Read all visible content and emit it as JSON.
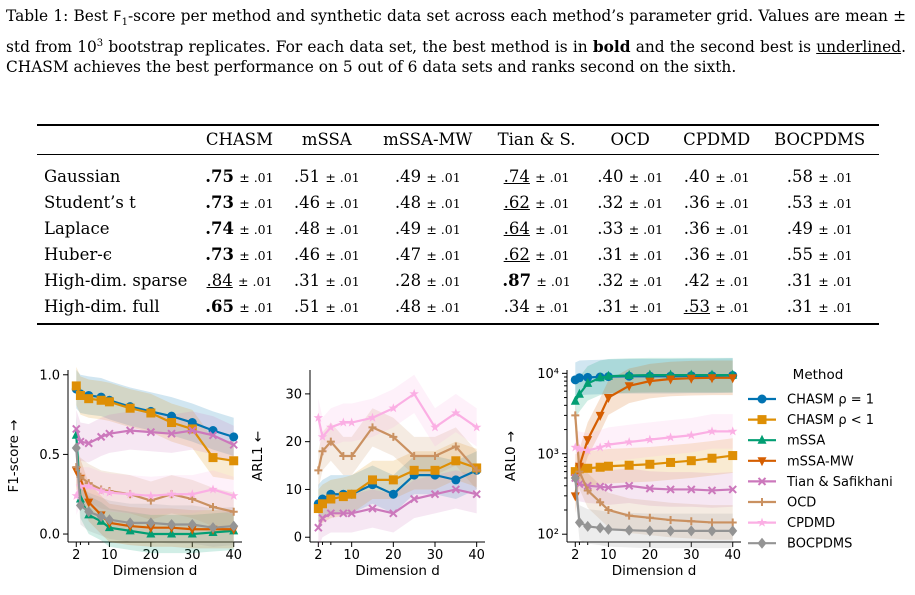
{
  "caption": {
    "prefix": "Table 1: Best ",
    "f1": "F",
    "f1_sub": "1",
    "part1": "-score per method and synthetic data set across each method’s parameter grid. Values are mean ± std from 10",
    "sup3": "3",
    "part2": " bootstrap replicates. For each data set, the best method is in ",
    "bold_word": "bold",
    "part3": " and the second best is ",
    "underlined_word": "underlined",
    "part4": ". CHASM achieves the best performance on 5 out of 6 data sets and ranks second on the sixth."
  },
  "table": {
    "columns": [
      "CHASM",
      "mSSA",
      "mSSA-MW",
      "Tian & S.",
      "OCD",
      "CPDMD",
      "BOCPDMS"
    ],
    "std": "± .01",
    "rows": [
      {
        "label": "Gaussian",
        "cells": [
          {
            "v": ".75",
            "s": "b"
          },
          {
            "v": ".51",
            "s": ""
          },
          {
            "v": ".49",
            "s": ""
          },
          {
            "v": ".74",
            "s": "u"
          },
          {
            "v": ".40",
            "s": ""
          },
          {
            "v": ".40",
            "s": ""
          },
          {
            "v": ".58",
            "s": ""
          }
        ]
      },
      {
        "label": "Student’s t",
        "cells": [
          {
            "v": ".73",
            "s": "b"
          },
          {
            "v": ".46",
            "s": ""
          },
          {
            "v": ".48",
            "s": ""
          },
          {
            "v": ".62",
            "s": "u"
          },
          {
            "v": ".32",
            "s": ""
          },
          {
            "v": ".36",
            "s": ""
          },
          {
            "v": ".53",
            "s": ""
          }
        ]
      },
      {
        "label": "Laplace",
        "cells": [
          {
            "v": ".74",
            "s": "b"
          },
          {
            "v": ".48",
            "s": ""
          },
          {
            "v": ".49",
            "s": ""
          },
          {
            "v": ".64",
            "s": "u"
          },
          {
            "v": ".33",
            "s": ""
          },
          {
            "v": ".36",
            "s": ""
          },
          {
            "v": ".49",
            "s": ""
          }
        ]
      },
      {
        "label": "Huber-ϵ",
        "cells": [
          {
            "v": ".73",
            "s": "b"
          },
          {
            "v": ".46",
            "s": ""
          },
          {
            "v": ".47",
            "s": ""
          },
          {
            "v": ".62",
            "s": "u"
          },
          {
            "v": ".31",
            "s": ""
          },
          {
            "v": ".36",
            "s": ""
          },
          {
            "v": ".55",
            "s": ""
          }
        ]
      },
      {
        "label": "High-dim. sparse",
        "cells": [
          {
            "v": ".84",
            "s": "u"
          },
          {
            "v": ".31",
            "s": ""
          },
          {
            "v": ".28",
            "s": ""
          },
          {
            "v": ".87",
            "s": "b"
          },
          {
            "v": ".32",
            "s": ""
          },
          {
            "v": ".42",
            "s": ""
          },
          {
            "v": ".31",
            "s": ""
          }
        ]
      },
      {
        "label": "High-dim. full",
        "cells": [
          {
            "v": ".65",
            "s": "b"
          },
          {
            "v": ".51",
            "s": ""
          },
          {
            "v": ".48",
            "s": ""
          },
          {
            "v": ".34",
            "s": ""
          },
          {
            "v": ".31",
            "s": ""
          },
          {
            "v": ".53",
            "s": "u"
          },
          {
            "v": ".31",
            "s": ""
          }
        ]
      }
    ]
  },
  "chart_data": [
    {
      "type": "line",
      "xlabel": "Dimension d",
      "ylabel": "F1-score →",
      "xticks": [
        2,
        10,
        20,
        30,
        40
      ],
      "minor_xticks": [
        3,
        5
      ],
      "yticks": [
        "0.0",
        "0.5",
        "1.0"
      ],
      "ylim": [
        -0.05,
        1.03
      ],
      "xlim": [
        0,
        42
      ],
      "x": [
        2,
        3,
        5,
        8,
        10,
        15,
        20,
        25,
        30,
        35,
        40
      ],
      "series": [
        {
          "name": "CHASM ρ = 1",
          "values": [
            0.91,
            0.88,
            0.87,
            0.86,
            0.84,
            0.8,
            0.77,
            0.74,
            0.7,
            0.65,
            0.61
          ]
        },
        {
          "name": "CHASM ρ < 1",
          "values": [
            0.93,
            0.87,
            0.85,
            0.84,
            0.83,
            0.79,
            0.76,
            0.7,
            0.66,
            0.48,
            0.46
          ]
        },
        {
          "name": "mSSA",
          "values": [
            0.62,
            0.22,
            0.12,
            0.08,
            0.04,
            0.02,
            0.0,
            0.0,
            0.0,
            0.01,
            0.02
          ]
        },
        {
          "name": "mSSA-MW",
          "values": [
            0.4,
            0.35,
            0.2,
            0.12,
            0.07,
            0.05,
            0.04,
            0.04,
            0.03,
            0.03,
            0.03
          ]
        },
        {
          "name": "Tian & Safikhani",
          "values": [
            0.66,
            0.58,
            0.57,
            0.61,
            0.63,
            0.65,
            0.64,
            0.63,
            0.65,
            0.62,
            0.56
          ]
        },
        {
          "name": "OCD",
          "values": [
            0.42,
            0.36,
            0.32,
            0.28,
            0.27,
            0.25,
            0.21,
            0.25,
            0.22,
            0.17,
            0.14
          ]
        },
        {
          "name": "CPDMD",
          "values": [
            0.24,
            0.3,
            0.3,
            0.27,
            0.26,
            0.25,
            0.24,
            0.25,
            0.25,
            0.28,
            0.24
          ]
        },
        {
          "name": "BOCPDMS",
          "values": [
            0.54,
            0.18,
            0.14,
            0.11,
            0.09,
            0.07,
            0.07,
            0.06,
            0.06,
            0.04,
            0.05
          ]
        }
      ]
    },
    {
      "type": "line",
      "xlabel": "Dimension d",
      "ylabel": "ARL1 ←",
      "xticks": [
        2,
        10,
        20,
        30,
        40
      ],
      "minor_xticks": [
        3,
        5
      ],
      "yticks": [
        "0",
        "10",
        "20",
        "30"
      ],
      "ylim": [
        -1,
        35
      ],
      "xlim": [
        0,
        42
      ],
      "x": [
        2,
        3,
        5,
        8,
        10,
        15,
        20,
        25,
        30,
        35,
        40
      ],
      "series": [
        {
          "name": "CHASM ρ = 1",
          "values": [
            7,
            8,
            9,
            9,
            9,
            11,
            9,
            13,
            13,
            12,
            14
          ]
        },
        {
          "name": "CHASM ρ < 1",
          "values": [
            6,
            7,
            8,
            8.5,
            9,
            12,
            12,
            14,
            14,
            16,
            14.5
          ]
        },
        {
          "name": "Tian & Safikhani",
          "values": [
            2,
            4,
            5,
            5,
            5,
            6,
            5,
            8,
            9,
            10,
            9
          ]
        },
        {
          "name": "OCD",
          "values": [
            14,
            18,
            20,
            17,
            17,
            23,
            21,
            17,
            17,
            19,
            14
          ]
        },
        {
          "name": "CPDMD",
          "values": [
            25,
            21,
            23,
            24,
            24,
            25,
            27,
            30,
            23,
            26,
            23
          ]
        }
      ]
    },
    {
      "type": "line",
      "log_scale_y": true,
      "xlabel": "Dimension d",
      "ylabel": "ARL0 →",
      "xticks": [
        2,
        10,
        20,
        30,
        40
      ],
      "minor_xticks": [
        3,
        5
      ],
      "yticks": [
        "10²",
        "10³",
        "10⁴"
      ],
      "xlim": [
        0,
        42
      ],
      "x": [
        2,
        3,
        5,
        8,
        10,
        15,
        20,
        25,
        30,
        35,
        40
      ],
      "series": [
        {
          "name": "CHASM ρ = 1",
          "values": [
            8300,
            8800,
            8900,
            9000,
            9100,
            9200,
            9200,
            9200,
            9300,
            9300,
            9400
          ]
        },
        {
          "name": "CHASM ρ < 1",
          "values": [
            600,
            650,
            660,
            680,
            700,
            720,
            740,
            780,
            820,
            880,
            950
          ]
        },
        {
          "name": "mSSA",
          "values": [
            4500,
            5500,
            7500,
            8800,
            9200,
            9400,
            9500,
            9500,
            9500,
            9500,
            9500
          ]
        },
        {
          "name": "mSSA-MW",
          "values": [
            300,
            700,
            1500,
            3000,
            5000,
            7000,
            8000,
            8500,
            8700,
            8800,
            8800
          ]
        },
        {
          "name": "Tian & Safikhani",
          "values": [
            500,
            420,
            400,
            390,
            380,
            400,
            370,
            360,
            360,
            350,
            360
          ]
        },
        {
          "name": "OCD",
          "values": [
            3000,
            600,
            350,
            250,
            200,
            170,
            160,
            150,
            145,
            140,
            140
          ]
        },
        {
          "name": "CPDMD",
          "values": [
            1200,
            1150,
            1100,
            1200,
            1300,
            1400,
            1500,
            1600,
            1700,
            1900,
            1900
          ]
        },
        {
          "name": "BOCPDMS",
          "values": [
            500,
            140,
            125,
            120,
            115,
            112,
            110,
            110,
            110,
            110,
            110
          ]
        }
      ]
    }
  ],
  "legend": {
    "title": "Method",
    "items": [
      {
        "name": "CHASM ρ = 1",
        "color": "#0173b2",
        "marker": "circle"
      },
      {
        "name": "CHASM ρ < 1",
        "color": "#de8f05",
        "marker": "square"
      },
      {
        "name": "mSSA",
        "color": "#029e73",
        "marker": "triangle-up"
      },
      {
        "name": "mSSA-MW",
        "color": "#d55e00",
        "marker": "triangle-down"
      },
      {
        "name": "Tian & Safikhani",
        "color": "#cc78bc",
        "marker": "x"
      },
      {
        "name": "OCD",
        "color": "#ca9161",
        "marker": "plus"
      },
      {
        "name": "CPDMD",
        "color": "#fbafe4",
        "marker": "star"
      },
      {
        "name": "BOCPDMS",
        "color": "#949494",
        "marker": "diamond"
      }
    ]
  }
}
